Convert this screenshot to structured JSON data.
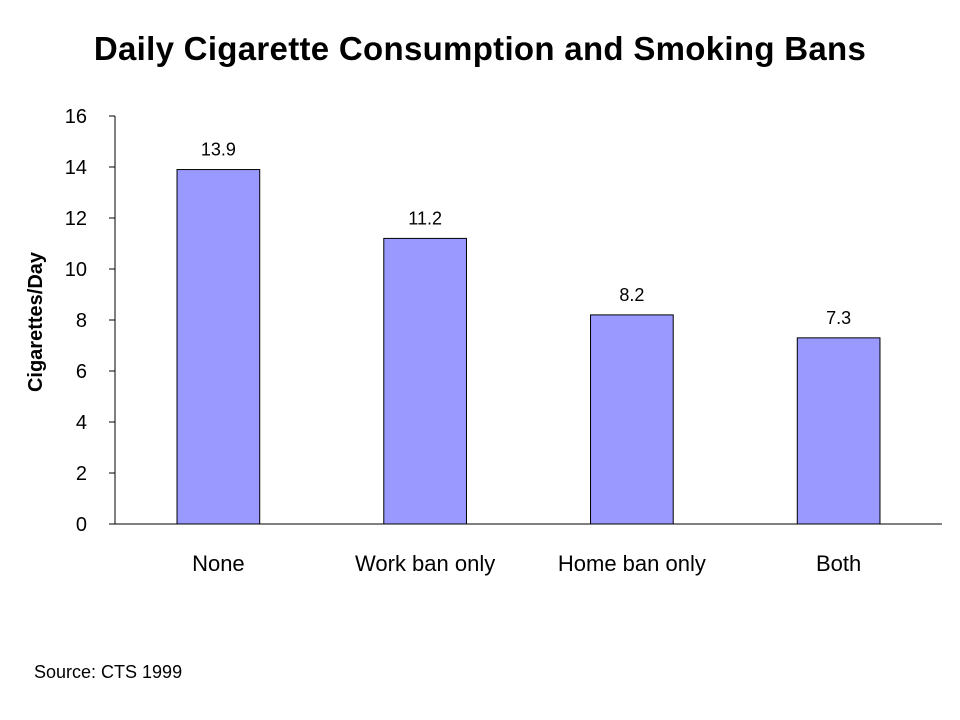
{
  "chart_data": {
    "type": "bar",
    "title": "Daily Cigarette Consumption and Smoking Bans",
    "xlabel": "",
    "ylabel": "Cigarettes/Day",
    "categories": [
      "None",
      "Work ban only",
      "Home ban only",
      "Both"
    ],
    "values": [
      13.9,
      11.2,
      8.2,
      7.3
    ],
    "data_labels": [
      "13.9",
      "11.2",
      "8.2",
      "7.3"
    ],
    "ylim": [
      0,
      16
    ],
    "yticks": [
      0,
      2,
      4,
      6,
      8,
      10,
      12,
      14,
      16
    ],
    "bar_color": "#9999ff",
    "grid": false,
    "legend": "none"
  },
  "footer": {
    "source": "Source: CTS 1999"
  }
}
